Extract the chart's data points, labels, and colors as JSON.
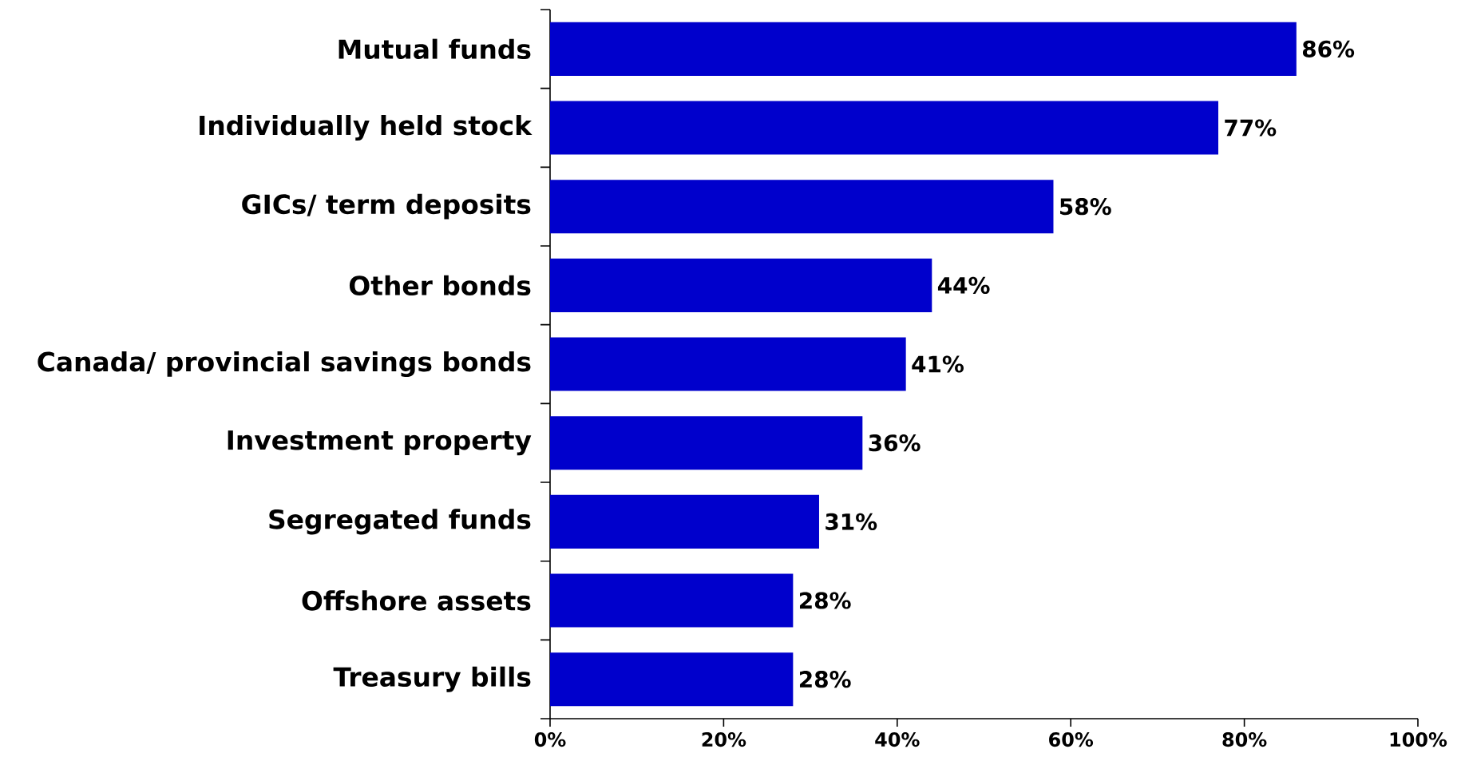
{
  "chart_data": {
    "type": "bar",
    "orientation": "horizontal",
    "categories": [
      "Mutual funds",
      "Individually held stock",
      "GICs/ term deposits",
      "Other bonds",
      "Canada/ provincial savings bonds",
      "Investment property",
      "Segregated funds",
      "Offshore assets",
      "Treasury bills"
    ],
    "values": [
      86,
      77,
      58,
      44,
      41,
      36,
      31,
      28,
      28
    ],
    "value_labels": [
      "86%",
      "77%",
      "58%",
      "44%",
      "41%",
      "36%",
      "31%",
      "28%",
      "28%"
    ],
    "color": "#0000cc",
    "xlim": [
      0,
      100
    ],
    "xticks": [
      {
        "value": 0,
        "label": "0%"
      },
      {
        "value": 20,
        "label": "20%"
      },
      {
        "value": 40,
        "label": "40%"
      },
      {
        "value": 60,
        "label": "60%"
      },
      {
        "value": 80,
        "label": "80%"
      },
      {
        "value": 100,
        "label": "100%"
      }
    ],
    "grid": false
  }
}
